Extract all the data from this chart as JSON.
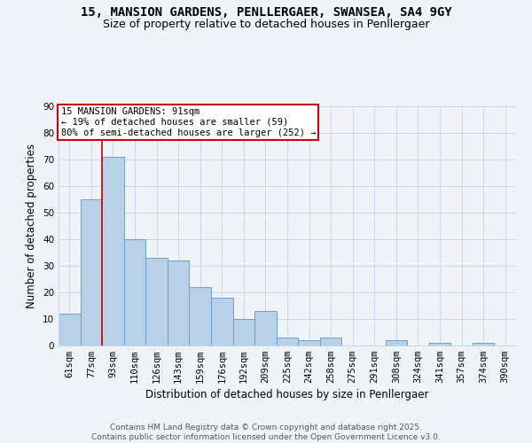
{
  "title1": "15, MANSION GARDENS, PENLLERGAER, SWANSEA, SA4 9GY",
  "title2": "Size of property relative to detached houses in Penllergaer",
  "xlabel": "Distribution of detached houses by size in Penllergaer",
  "ylabel": "Number of detached properties",
  "bar_labels": [
    "61sqm",
    "77sqm",
    "93sqm",
    "110sqm",
    "126sqm",
    "143sqm",
    "159sqm",
    "176sqm",
    "192sqm",
    "209sqm",
    "225sqm",
    "242sqm",
    "258sqm",
    "275sqm",
    "291sqm",
    "308sqm",
    "324sqm",
    "341sqm",
    "357sqm",
    "374sqm",
    "390sqm"
  ],
  "bar_values": [
    12,
    55,
    71,
    40,
    33,
    32,
    22,
    18,
    10,
    13,
    3,
    2,
    3,
    0,
    0,
    2,
    0,
    1,
    0,
    1,
    0
  ],
  "bar_color": "#b8d0e8",
  "bar_edge_color": "#6a9fc8",
  "bar_edge_width": 0.7,
  "red_line_index": 2,
  "annotation_line1": "15 MANSION GARDENS: 91sqm",
  "annotation_line2": "← 19% of detached houses are smaller (59)",
  "annotation_line3": "80% of semi-detached houses are larger (252) →",
  "annotation_box_color": "#ffffff",
  "annotation_box_edge_color": "#cc0000",
  "red_line_color": "#cc0000",
  "grid_color": "#c8d8ea",
  "background_color": "#f0f4f8",
  "footer1": "Contains HM Land Registry data © Crown copyright and database right 2025.",
  "footer2": "Contains public sector information licensed under the Open Government Licence v3.0.",
  "ylim": [
    0,
    90
  ],
  "yticks": [
    0,
    10,
    20,
    30,
    40,
    50,
    60,
    70,
    80,
    90
  ],
  "title_fontsize": 10,
  "subtitle_fontsize": 9,
  "axis_label_fontsize": 8.5,
  "tick_fontsize": 7.5,
  "annotation_fontsize": 7.5,
  "footer_fontsize": 6.5
}
